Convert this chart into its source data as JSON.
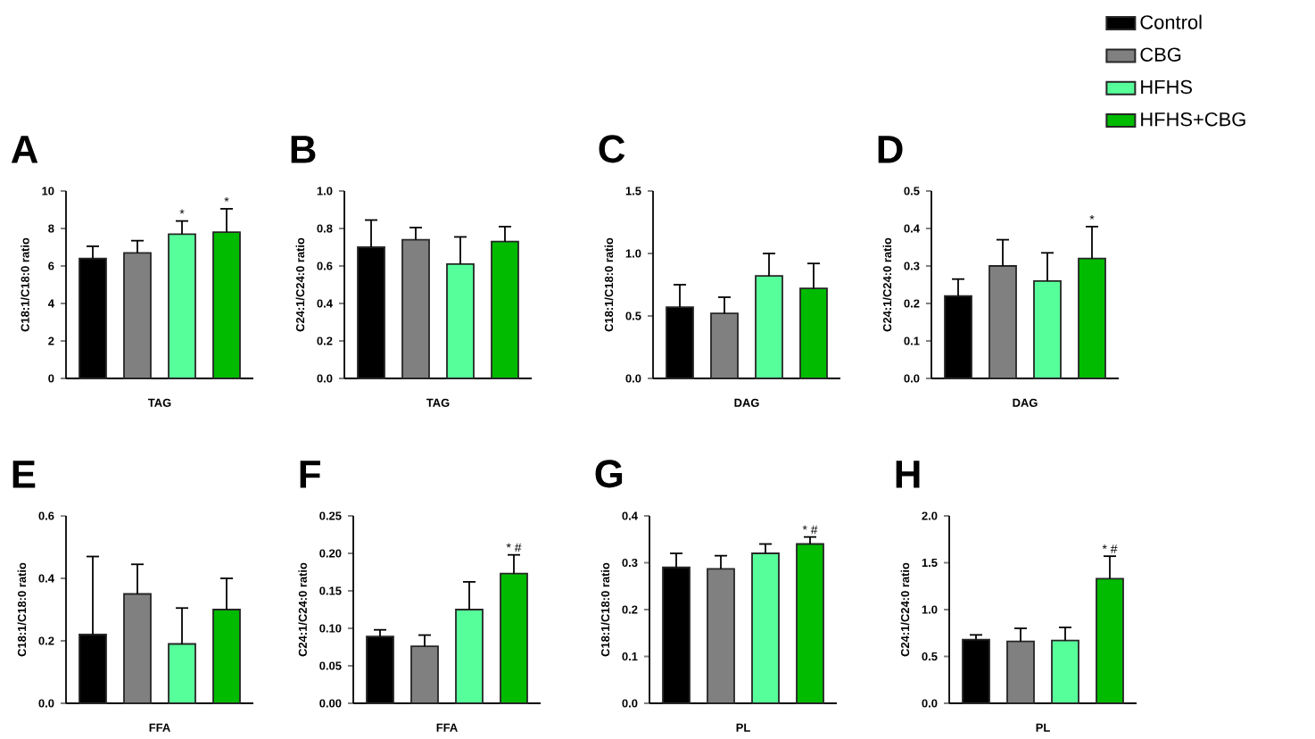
{
  "chart_data": [
    {
      "type": "bar",
      "title": "A",
      "ylabel": "C18:1/C18:0 ratio",
      "xlabel": "TAG",
      "categories": [
        null,
        null,
        null,
        null
      ],
      "ylim": [
        0,
        10
      ],
      "yticks": [
        0,
        2,
        4,
        6,
        8,
        10
      ],
      "series": [
        {
          "color": "#000000",
          "values": [
            6.4,
            null,
            null,
            null
          ],
          "errors": [
            0.65,
            null,
            null,
            null
          ]
        },
        {
          "color": "#808080",
          "values": [
            null,
            6.7,
            null,
            null
          ],
          "errors": [
            null,
            0.65,
            null,
            null
          ]
        },
        {
          "color": "#57ff9a",
          "values": [
            null,
            null,
            7.7,
            null
          ],
          "errors": [
            null,
            null,
            0.7,
            null
          ],
          "value_labels": [
            null,
            null,
            "*",
            null
          ]
        },
        {
          "color": "#00bb00",
          "values": [
            null,
            null,
            null,
            7.8
          ],
          "errors": [
            null,
            null,
            null,
            1.25
          ],
          "value_labels": [
            null,
            null,
            null,
            "*"
          ]
        }
      ]
    },
    {
      "type": "bar",
      "title": "B",
      "ylabel": "C24:1/C24:0 ratio",
      "xlabel": "TAG",
      "categories": [
        null,
        null,
        null,
        null
      ],
      "ylim": [
        0,
        1
      ],
      "yticks": [
        {
          "value": 0,
          "label": "0.0"
        },
        0.2,
        0.4,
        0.6,
        0.8,
        {
          "value": 1,
          "label": "1.0"
        }
      ],
      "series": [
        {
          "color": "#000000",
          "values": [
            0.7,
            null,
            null,
            null
          ],
          "errors": [
            0.145,
            null,
            null,
            null
          ]
        },
        {
          "color": "#808080",
          "values": [
            null,
            0.74,
            null,
            null
          ],
          "errors": [
            null,
            0.065,
            null,
            null
          ]
        },
        {
          "color": "#57ff9a",
          "values": [
            null,
            null,
            0.61,
            null
          ],
          "errors": [
            null,
            null,
            0.145,
            null
          ]
        },
        {
          "color": "#00bb00",
          "values": [
            null,
            null,
            null,
            0.73
          ],
          "errors": [
            null,
            null,
            null,
            0.08
          ]
        }
      ]
    },
    {
      "type": "bar",
      "title": "C",
      "ylabel": "C18:1/C18:0 ratio",
      "xlabel": "DAG",
      "categories": [
        null,
        null,
        null,
        null
      ],
      "ylim": [
        0,
        1.5
      ],
      "yticks": [
        {
          "value": 0,
          "label": "0.0"
        },
        0.5,
        {
          "value": 1,
          "label": "1.0"
        },
        1.5
      ],
      "series": [
        {
          "color": "#000000",
          "values": [
            0.57,
            null,
            null,
            null
          ],
          "errors": [
            0.18,
            null,
            null,
            null
          ]
        },
        {
          "color": "#808080",
          "values": [
            null,
            0.52,
            null,
            null
          ],
          "errors": [
            null,
            0.13,
            null,
            null
          ]
        },
        {
          "color": "#57ff9a",
          "values": [
            null,
            null,
            0.82,
            null
          ],
          "errors": [
            null,
            null,
            0.18,
            null
          ]
        },
        {
          "color": "#00bb00",
          "values": [
            null,
            null,
            null,
            0.72
          ],
          "errors": [
            null,
            null,
            null,
            0.2
          ]
        }
      ]
    },
    {
      "type": "bar",
      "title": "D",
      "ylabel": "C24:1/C24:0 ratio",
      "xlabel": "DAG",
      "categories": [
        null,
        null,
        null,
        null
      ],
      "ylim": [
        0,
        0.5
      ],
      "yticks": [
        {
          "value": 0,
          "label": "0.0"
        },
        0.1,
        0.2,
        0.3,
        0.4,
        0.5
      ],
      "legend": "top right",
      "series": [
        {
          "name": "Control",
          "color": "#000000",
          "values": [
            0.22,
            null,
            null,
            null
          ],
          "errors": [
            0.045,
            null,
            null,
            null
          ]
        },
        {
          "name": "CBG",
          "color": "#808080",
          "values": [
            null,
            0.3,
            null,
            null
          ],
          "errors": [
            null,
            0.07,
            null,
            null
          ]
        },
        {
          "name": "HFHS",
          "color": "#57ff9a",
          "values": [
            null,
            null,
            0.26,
            null
          ],
          "errors": [
            null,
            null,
            0.075,
            null
          ]
        },
        {
          "name": "HFHS+CBG",
          "color": "#00bb00",
          "values": [
            null,
            null,
            null,
            0.32
          ],
          "errors": [
            null,
            null,
            null,
            0.085
          ],
          "value_labels": [
            null,
            null,
            null,
            "*"
          ]
        }
      ]
    },
    {
      "type": "bar",
      "title": "E",
      "ylabel": "C18:1/C18:0 ratio",
      "xlabel": "FFA",
      "categories": [
        null,
        null,
        null,
        null
      ],
      "ylim": [
        0,
        0.6
      ],
      "yticks": [
        {
          "value": 0,
          "label": "0.0"
        },
        0.2,
        0.4,
        0.6
      ],
      "series": [
        {
          "color": "#000000",
          "values": [
            0.22,
            null,
            null,
            null
          ],
          "errors": [
            0.25,
            null,
            null,
            null
          ]
        },
        {
          "color": "#808080",
          "values": [
            null,
            0.35,
            null,
            null
          ],
          "errors": [
            null,
            0.095,
            null,
            null
          ]
        },
        {
          "color": "#57ff9a",
          "values": [
            null,
            null,
            0.19,
            null
          ],
          "errors": [
            null,
            null,
            0.115,
            null
          ]
        },
        {
          "color": "#00bb00",
          "values": [
            null,
            null,
            null,
            0.3
          ],
          "errors": [
            null,
            null,
            null,
            0.1
          ]
        }
      ]
    },
    {
      "type": "bar",
      "title": "F",
      "ylabel": "C24:1/C24:0 ratio",
      "xlabel": "FFA",
      "categories": [
        null,
        null,
        null,
        null
      ],
      "ylim": [
        0,
        0.25
      ],
      "yticks": [
        {
          "value": 0,
          "label": "0.00"
        },
        0.05,
        {
          "value": 0.1,
          "label": "0.10"
        },
        0.15,
        {
          "value": 0.2,
          "label": "0.20"
        },
        0.25
      ],
      "series": [
        {
          "color": "#000000",
          "values": [
            0.089,
            null,
            null,
            null
          ],
          "errors": [
            0.009,
            null,
            null,
            null
          ]
        },
        {
          "color": "#808080",
          "values": [
            null,
            0.076,
            null,
            null
          ],
          "errors": [
            null,
            0.015,
            null,
            null
          ]
        },
        {
          "color": "#57ff9a",
          "values": [
            null,
            null,
            0.125,
            null
          ],
          "errors": [
            null,
            null,
            0.037,
            null
          ]
        },
        {
          "color": "#00bb00",
          "values": [
            null,
            null,
            null,
            0.173
          ],
          "errors": [
            null,
            null,
            null,
            0.025
          ],
          "value_labels": [
            null,
            null,
            null,
            "* #"
          ]
        }
      ]
    },
    {
      "type": "bar",
      "title": "G",
      "ylabel": "C18:1/C18:0 ratio",
      "xlabel": "PL",
      "categories": [
        null,
        null,
        null,
        null
      ],
      "ylim": [
        0,
        0.4
      ],
      "yticks": [
        {
          "value": 0,
          "label": "0.0"
        },
        0.1,
        0.2,
        0.3,
        0.4
      ],
      "series": [
        {
          "color": "#000000",
          "values": [
            0.29,
            null,
            null,
            null
          ],
          "errors": [
            0.03,
            null,
            null,
            null
          ]
        },
        {
          "color": "#808080",
          "values": [
            null,
            0.287,
            null,
            null
          ],
          "errors": [
            null,
            0.028,
            null,
            null
          ]
        },
        {
          "color": "#57ff9a",
          "values": [
            null,
            null,
            0.32,
            null
          ],
          "errors": [
            null,
            null,
            0.02,
            null
          ]
        },
        {
          "color": "#00bb00",
          "values": [
            null,
            null,
            null,
            0.34
          ],
          "errors": [
            null,
            null,
            null,
            0.015
          ],
          "value_labels": [
            null,
            null,
            null,
            "* #"
          ]
        }
      ]
    },
    {
      "type": "bar",
      "title": "H",
      "ylabel": "C24:1/C24:0 ratio",
      "xlabel": "PL",
      "categories": [
        null,
        null,
        null,
        null
      ],
      "ylim": [
        0,
        2
      ],
      "yticks": [
        {
          "value": 0,
          "label": "0.0"
        },
        0.5,
        {
          "value": 1,
          "label": "1.0"
        },
        1.5,
        {
          "value": 2,
          "label": "2.0"
        }
      ],
      "series": [
        {
          "color": "#000000",
          "values": [
            0.68,
            null,
            null,
            null
          ],
          "errors": [
            0.05,
            null,
            null,
            null
          ]
        },
        {
          "color": "#808080",
          "values": [
            null,
            0.66,
            null,
            null
          ],
          "errors": [
            null,
            0.14,
            null,
            null
          ]
        },
        {
          "color": "#57ff9a",
          "values": [
            null,
            null,
            0.67,
            null
          ],
          "errors": [
            null,
            null,
            0.14,
            null
          ]
        },
        {
          "color": "#00bb00",
          "values": [
            null,
            null,
            null,
            1.33
          ],
          "errors": [
            null,
            null,
            null,
            0.24
          ],
          "value_labels": [
            null,
            null,
            null,
            "* #"
          ]
        }
      ]
    }
  ]
}
